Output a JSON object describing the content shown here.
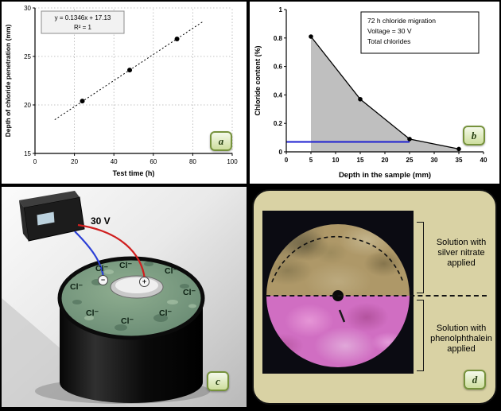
{
  "panels": {
    "a": {
      "label": "a"
    },
    "b": {
      "label": "b"
    },
    "c": {
      "label": "c",
      "voltage": "30 V",
      "ion": "Cl⁻",
      "plus": "+",
      "minus": "−"
    },
    "d": {
      "label": "d",
      "top_annotation": "Solution with silver nitrate applied",
      "bottom_annotation": "Solution with phenolphthalein applied"
    }
  },
  "chart_data": [
    {
      "type": "scatter",
      "panel": "a",
      "x": [
        24,
        48,
        72
      ],
      "y": [
        20.4,
        23.6,
        26.8
      ],
      "trendline": {
        "label": "y = 0.1346x + 17.13",
        "r2_label": "R² = 1",
        "slope": 0.1346,
        "intercept": 17.13,
        "x_range": [
          10,
          85
        ]
      },
      "xlabel": "Test time (h)",
      "ylabel": "Depth of chloride penetration (mm)",
      "xlim": [
        0,
        100
      ],
      "ylim": [
        15,
        30
      ],
      "xticks": [
        0,
        20,
        40,
        60,
        80,
        100
      ],
      "yticks": [
        15,
        20,
        25,
        30
      ],
      "grid": true,
      "marker_color": "#000000"
    },
    {
      "type": "area",
      "panel": "b",
      "x": [
        5,
        15,
        25,
        35
      ],
      "y": [
        0.81,
        0.37,
        0.09,
        0.02
      ],
      "fill_color": "#bfbfbf",
      "line_color": "#000000",
      "threshold": {
        "y": 0.07,
        "x_range": [
          0,
          25
        ],
        "color": "#1c1fd0"
      },
      "annotation": [
        "72 h chloride migration",
        "Voltage = 30 V",
        "Total chlorides"
      ],
      "xlabel": "Depth in the sample (mm)",
      "ylabel": "Chloride content (%)",
      "xlim": [
        0,
        40
      ],
      "ylim": [
        0,
        1
      ],
      "xticks": [
        0,
        5,
        10,
        15,
        20,
        25,
        30,
        35,
        40
      ],
      "yticks": [
        0,
        0.2,
        0.4,
        0.6,
        0.8,
        1
      ],
      "grid": false
    }
  ]
}
